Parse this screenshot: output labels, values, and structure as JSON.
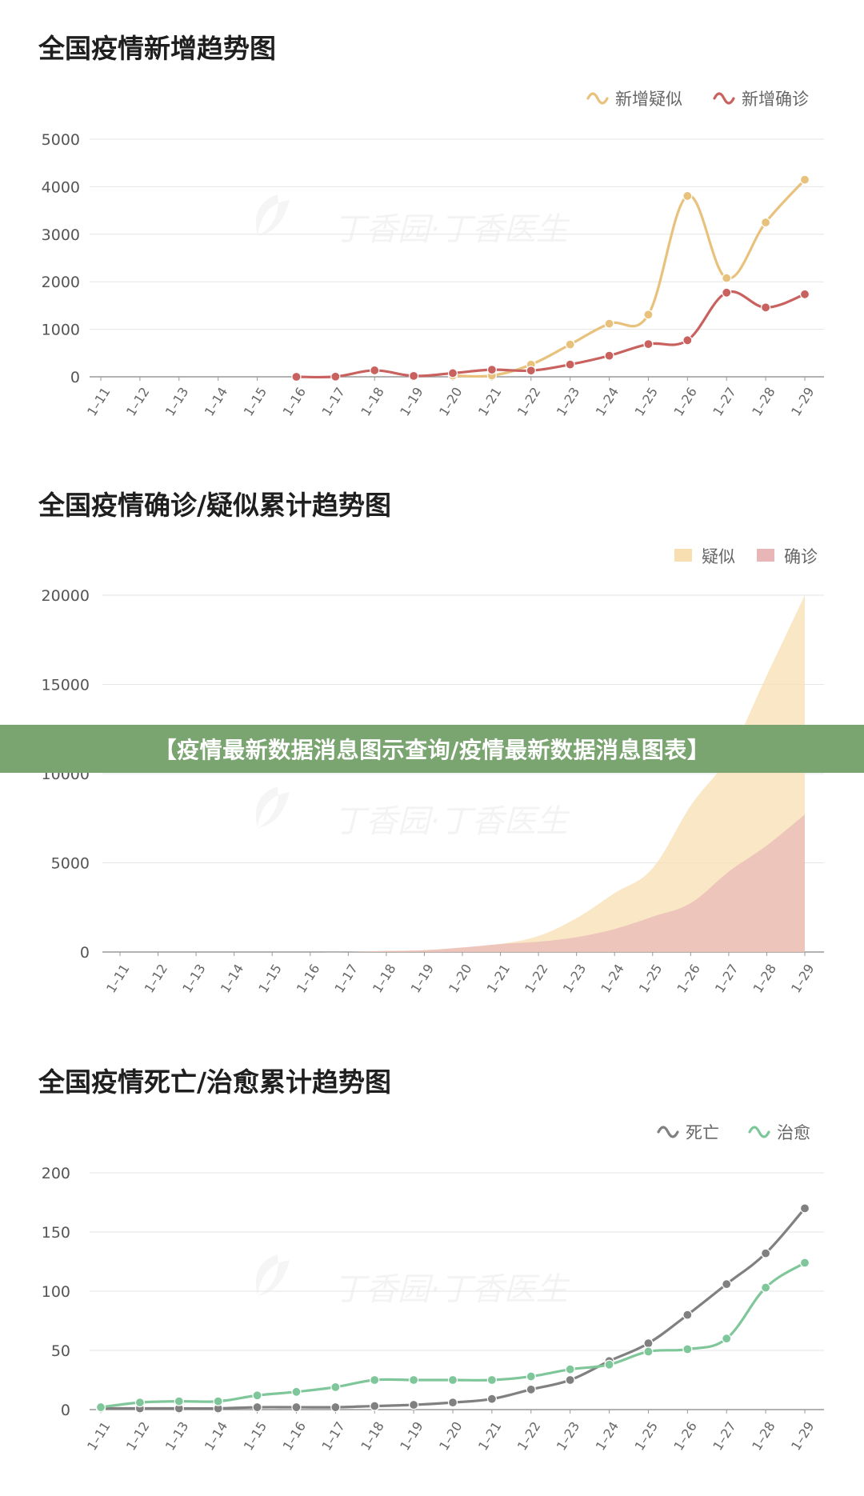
{
  "banner": {
    "text": "【疫情最新数据消息图示查询/疫情最新数据消息图表】"
  },
  "watermark": "丁香园·丁香医生",
  "chart_data": [
    {
      "type": "line",
      "title": "全国疫情新增趋势图",
      "categories": [
        "1-11",
        "1-12",
        "1-13",
        "1-14",
        "1-15",
        "1-16",
        "1-17",
        "1-18",
        "1-19",
        "1-20",
        "1-21",
        "1-22",
        "1-23",
        "1-24",
        "1-25",
        "1-26",
        "1-27",
        "1-28",
        "1-29"
      ],
      "ylim": [
        0,
        5000
      ],
      "yticks": [
        0,
        1000,
        2000,
        3000,
        4000,
        5000
      ],
      "grid": true,
      "legend_position": "top-right",
      "series": [
        {
          "name": "新增疑似",
          "color": "#e8c27d",
          "values": [
            null,
            null,
            null,
            null,
            null,
            null,
            null,
            null,
            null,
            27,
            26,
            257,
            680,
            1118,
            1309,
            3806,
            2077,
            3248,
            4148
          ]
        },
        {
          "name": "新增确诊",
          "color": "#c9625f",
          "values": [
            null,
            null,
            null,
            null,
            null,
            0,
            4,
            136,
            19,
            77,
            149,
            131,
            259,
            444,
            688,
            769,
            1771,
            1459,
            1737
          ]
        }
      ]
    },
    {
      "type": "area",
      "title": "全国疫情确诊/疑似累计趋势图",
      "categories": [
        "1-11",
        "1-12",
        "1-13",
        "1-14",
        "1-15",
        "1-16",
        "1-17",
        "1-18",
        "1-19",
        "1-20",
        "1-21",
        "1-22",
        "1-23",
        "1-24",
        "1-25",
        "1-26",
        "1-27",
        "1-28",
        "1-29"
      ],
      "ylim": [
        0,
        20000
      ],
      "yticks": [
        0,
        5000,
        10000,
        15000,
        20000
      ],
      "grid": true,
      "legend_position": "top-right",
      "series": [
        {
          "name": "疑似",
          "color": "#f7dfb2",
          "values": [
            0,
            0,
            0,
            0,
            0,
            0,
            0,
            60,
            100,
            250,
            450,
            900,
            1900,
            3300,
            4700,
            8200,
            11000,
            15500,
            20000
          ]
        },
        {
          "name": "确诊",
          "color": "#e8b6b6",
          "values": [
            0,
            0,
            0,
            0,
            0,
            0,
            0,
            60,
            100,
            250,
            450,
            580,
            830,
            1290,
            1980,
            2740,
            4500,
            5970,
            7700
          ]
        }
      ]
    },
    {
      "type": "line",
      "title": "全国疫情死亡/治愈累计趋势图",
      "categories": [
        "1-11",
        "1-12",
        "1-13",
        "1-14",
        "1-15",
        "1-16",
        "1-17",
        "1-18",
        "1-19",
        "1-20",
        "1-21",
        "1-22",
        "1-23",
        "1-24",
        "1-25",
        "1-26",
        "1-27",
        "1-28",
        "1-29"
      ],
      "ylim": [
        0,
        200
      ],
      "yticks": [
        0,
        50,
        100,
        150,
        200
      ],
      "grid": true,
      "legend_position": "top-right",
      "series": [
        {
          "name": "死亡",
          "color": "#808080",
          "values": [
            1,
            1,
            1,
            1,
            2,
            2,
            2,
            3,
            4,
            6,
            9,
            17,
            25,
            41,
            56,
            80,
            106,
            132,
            170
          ]
        },
        {
          "name": "治愈",
          "color": "#7fc79a",
          "values": [
            2,
            6,
            7,
            7,
            12,
            15,
            19,
            25,
            25,
            25,
            25,
            28,
            34,
            38,
            49,
            51,
            60,
            103,
            124
          ]
        }
      ]
    }
  ]
}
